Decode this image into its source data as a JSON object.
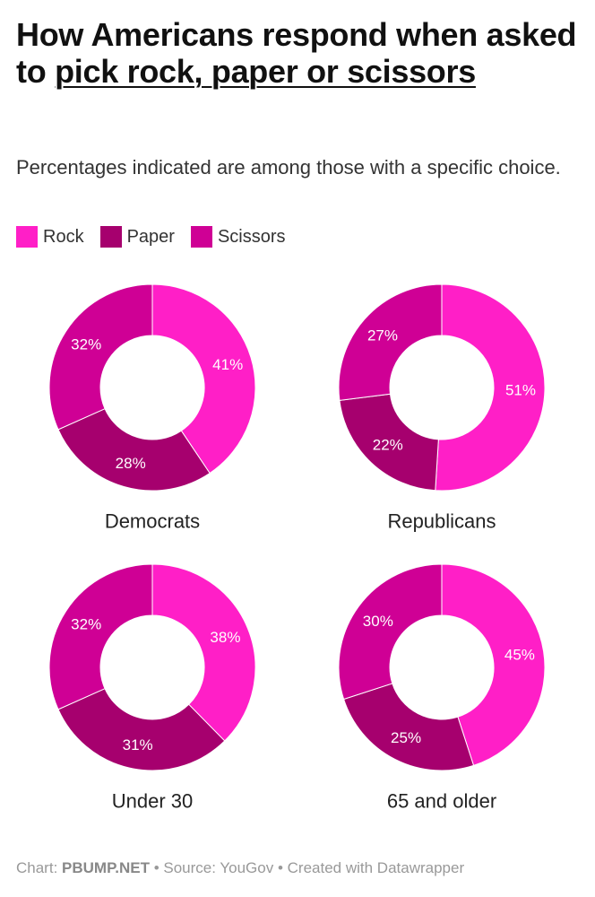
{
  "title": {
    "part1": "How Americans respond when asked to ",
    "link": "pick rock, paper or scissors"
  },
  "subtitle": "Percentages indicated are among those with a specific choice.",
  "colors": {
    "Rock": "#ff1fc7",
    "Paper": "#a6006e",
    "Scissors": "#cf0095"
  },
  "legend": [
    "Rock",
    "Paper",
    "Scissors"
  ],
  "chart_data": {
    "type": "pie",
    "variant": "donut",
    "categories": [
      "Rock",
      "Paper",
      "Scissors"
    ],
    "charts": [
      {
        "name": "Democrats",
        "values": [
          41,
          28,
          32
        ],
        "labels": [
          "41%",
          "28%",
          "32%"
        ]
      },
      {
        "name": "Republicans",
        "values": [
          51,
          22,
          27
        ],
        "labels": [
          "51%",
          "22%",
          "27%"
        ]
      },
      {
        "name": "Under 30",
        "values": [
          38,
          31,
          32
        ],
        "labels": [
          "38%",
          "31%",
          "32%"
        ]
      },
      {
        "name": "65 and older",
        "values": [
          45,
          25,
          30
        ],
        "labels": [
          "45%",
          "25%",
          "30%"
        ]
      }
    ]
  },
  "footer": {
    "chart_prefix": "Chart: ",
    "chart_by": "PBUMP.NET",
    "rest": " • Source: YouGov • Created with Datawrapper"
  }
}
